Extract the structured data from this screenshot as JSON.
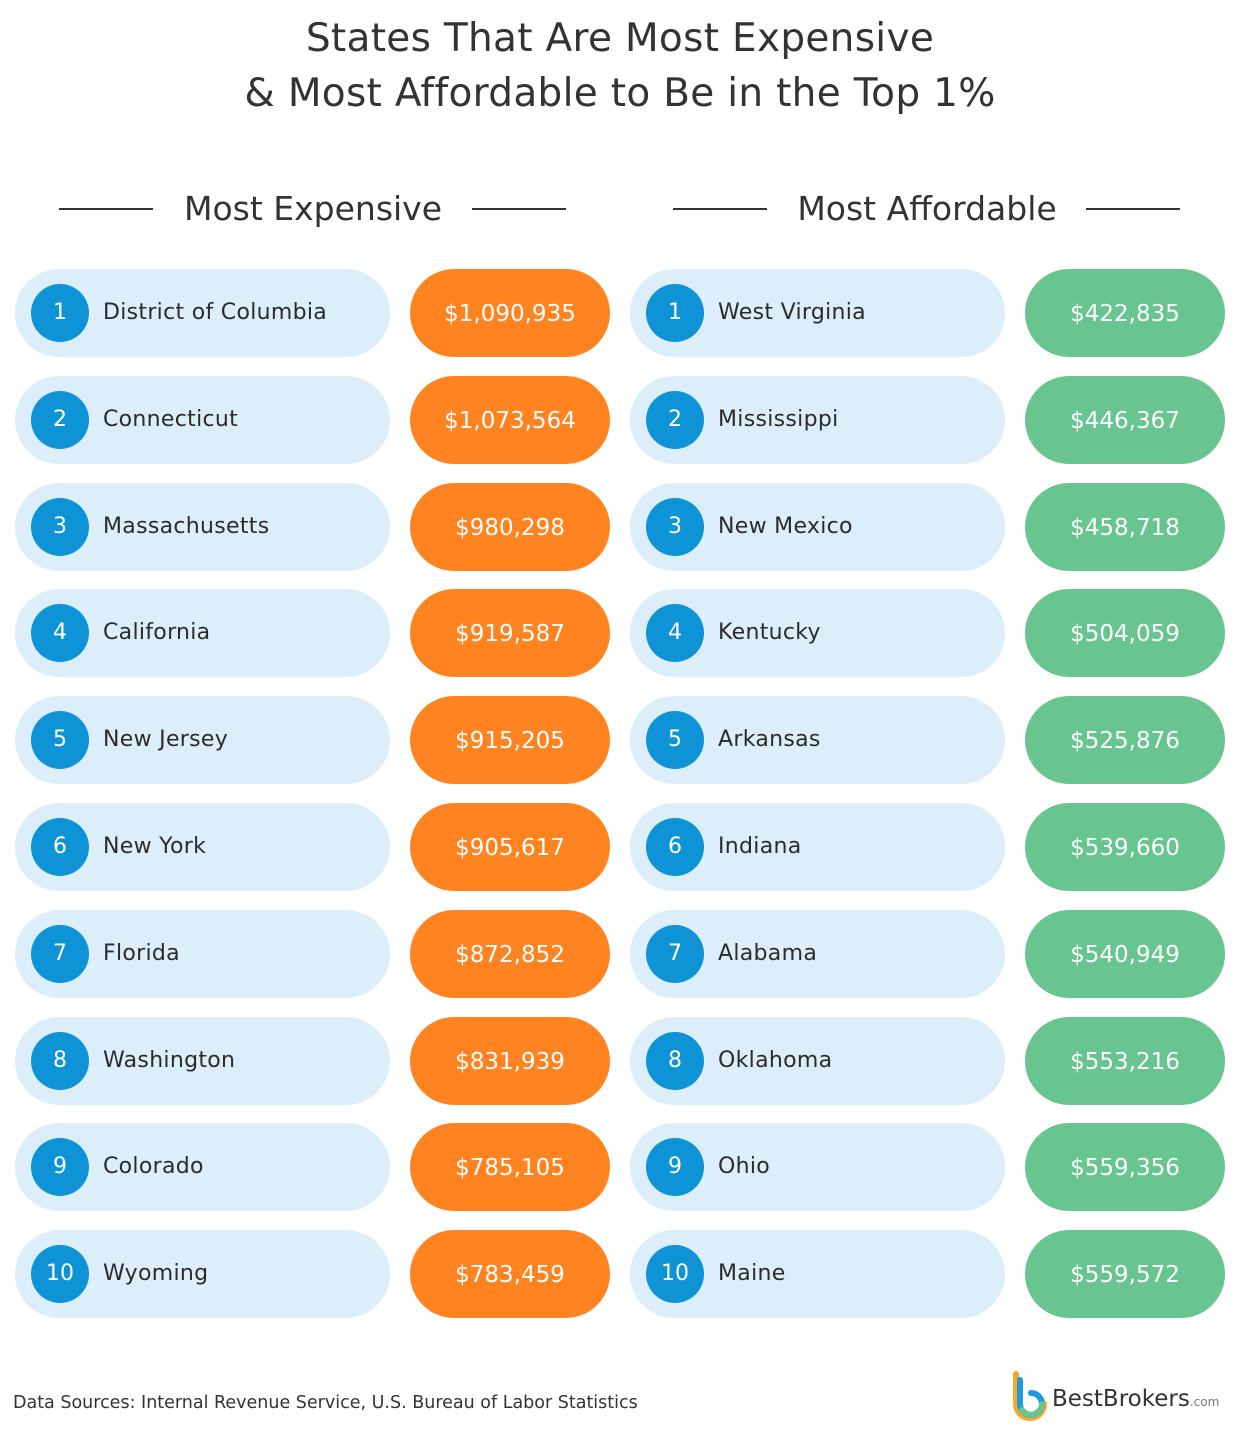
{
  "title_lines": [
    "States That Are Most Expensive",
    "& Most Affordable to Be in the Top 1%"
  ],
  "colors": {
    "expensive": "#ff8321",
    "affordable": "#69c58f",
    "rank_circle": "#0d93d6",
    "name_pill": "#dbeefa"
  },
  "chart_data": {
    "type": "table",
    "title": "States That Are Most Expensive & Most Affordable to Be in the Top 1%",
    "tables": [
      {
        "heading": "Most Expensive",
        "rows": [
          {
            "rank": "1",
            "state": "District of Columbia",
            "value": "$1,090,935"
          },
          {
            "rank": "2",
            "state": "Connecticut",
            "value": "$1,073,564"
          },
          {
            "rank": "3",
            "state": "Massachusetts",
            "value": "$980,298"
          },
          {
            "rank": "4",
            "state": "California",
            "value": "$919,587"
          },
          {
            "rank": "5",
            "state": "New Jersey",
            "value": "$915,205"
          },
          {
            "rank": "6",
            "state": "New York",
            "value": "$905,617"
          },
          {
            "rank": "7",
            "state": "Florida",
            "value": "$872,852"
          },
          {
            "rank": "8",
            "state": "Washington",
            "value": "$831,939"
          },
          {
            "rank": "9",
            "state": "Colorado",
            "value": "$785,105"
          },
          {
            "rank": "10",
            "state": "Wyoming",
            "value": "$783,459"
          }
        ]
      },
      {
        "heading": "Most Affordable",
        "rows": [
          {
            "rank": "1",
            "state": "West Virginia",
            "value": "$422,835"
          },
          {
            "rank": "2",
            "state": "Mississippi",
            "value": "$446,367"
          },
          {
            "rank": "3",
            "state": "New Mexico",
            "value": "$458,718"
          },
          {
            "rank": "4",
            "state": "Kentucky",
            "value": "$504,059"
          },
          {
            "rank": "5",
            "state": "Arkansas",
            "value": "$525,876"
          },
          {
            "rank": "6",
            "state": "Indiana",
            "value": "$539,660"
          },
          {
            "rank": "7",
            "state": "Alabama",
            "value": "$540,949"
          },
          {
            "rank": "8",
            "state": "Oklahoma",
            "value": "$553,216"
          },
          {
            "rank": "9",
            "state": "Ohio",
            "value": "$559,356"
          },
          {
            "rank": "10",
            "state": "Maine",
            "value": "$559,572"
          }
        ]
      }
    ]
  },
  "footer": {
    "sources": "Data Sources: Internal Revenue Service, U.S. Bureau of Labor Statistics"
  },
  "logo": {
    "name": "BestBrokers",
    "suffix": ".com"
  }
}
